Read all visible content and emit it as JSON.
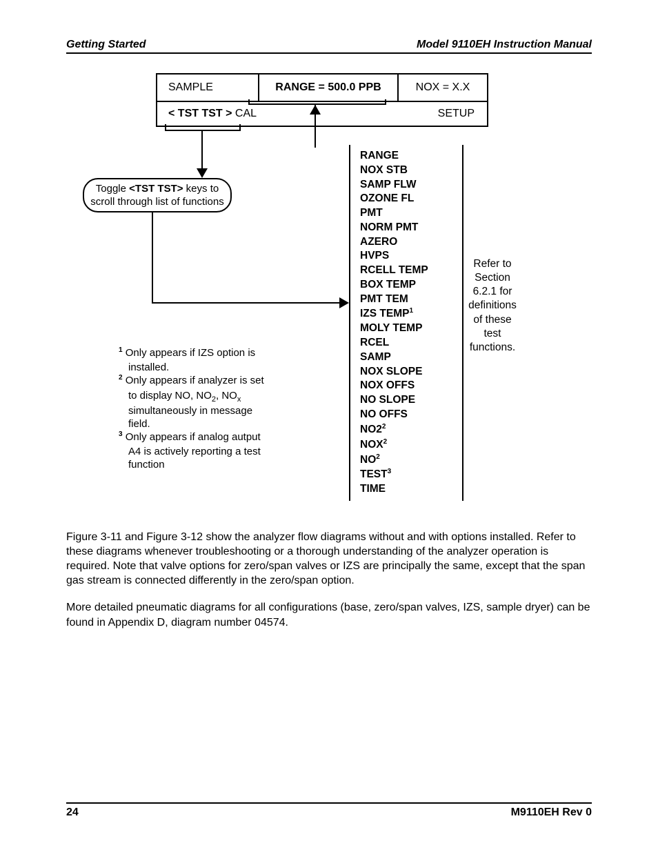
{
  "header": {
    "left": "Getting Started",
    "right": "Model 9110EH Instruction Manual"
  },
  "display": {
    "sample": "SAMPLE",
    "range": "RANGE = 500.0 PPB",
    "nox": "NOX = X.X",
    "tst_prefix": "< TST  TST >",
    "cal": " CAL",
    "setup": "SETUP"
  },
  "toggle": {
    "line1_a": "Toggle ",
    "line1_b": "<TST TST>",
    "line1_c": " keys to",
    "line2": "scroll through list of functions"
  },
  "func_list": [
    {
      "label": "RANGE",
      "sup": ""
    },
    {
      "label": "NOX STB",
      "sup": ""
    },
    {
      "label": "SAMP FLW",
      "sup": ""
    },
    {
      "label": "OZONE FL",
      "sup": ""
    },
    {
      "label": "PMT",
      "sup": ""
    },
    {
      "label": "NORM PMT",
      "sup": ""
    },
    {
      "label": "AZERO",
      "sup": ""
    },
    {
      "label": "HVPS",
      "sup": ""
    },
    {
      "label": "RCELL TEMP",
      "sup": ""
    },
    {
      "label": "BOX TEMP",
      "sup": ""
    },
    {
      "label": "PMT TEM",
      "sup": ""
    },
    {
      "label": "IZS TEMP",
      "sup": "1"
    },
    {
      "label": "MOLY TEMP",
      "sup": ""
    },
    {
      "label": "RCEL",
      "sup": ""
    },
    {
      "label": "SAMP",
      "sup": ""
    },
    {
      "label": "NOX SLOPE",
      "sup": ""
    },
    {
      "label": "NOX OFFS",
      "sup": ""
    },
    {
      "label": "NO SLOPE",
      "sup": ""
    },
    {
      "label": "NO OFFS",
      "sup": ""
    },
    {
      "label": "NO2",
      "sup": "2"
    },
    {
      "label": "NOX",
      "sup": "2"
    },
    {
      "label": "NO",
      "sup": "2"
    },
    {
      "label": "TEST",
      "sup": "3"
    },
    {
      "label": "TIME",
      "sup": ""
    }
  ],
  "refer": {
    "l1": "Refer to",
    "l2": "Section",
    "l3": "6.2.1 for",
    "l4": "definitions",
    "l5": "of these",
    "l6": "test",
    "l7": "functions."
  },
  "footnotes": {
    "f1_sup": "1",
    "f1_a": " Only appears if IZS  option is",
    "f1_b": "installed.",
    "f2_sup": "2",
    "f2_a": " Only appears if analyzer is set",
    "f2_b": "to display NO, NO",
    "f2_b2": ", NO",
    "f2_c": "simultaneously in message",
    "f2_d": "field.",
    "f3_sup": "3",
    "f3_a": " Only appears if  analog autput",
    "f3_b": "A4 is actively reporting a test",
    "f3_c": "function"
  },
  "para1": "Figure 3-11 and Figure 3-12 show the analyzer flow diagrams without and with options installed. Refer to these diagrams whenever troubleshooting or a thorough understanding of the analyzer operation is required. Note that valve options for zero/span valves or IZS are principally the same, except that the span gas stream is connected differently in the zero/span option.",
  "para2": "More detailed pneumatic diagrams for all configurations (base, zero/span valves, IZS, sample dryer) can be found in Appendix D, diagram number 04574.",
  "footer": {
    "page": "24",
    "rev": "M9110EH Rev 0"
  },
  "colors": {
    "text": "#000000",
    "bg": "#ffffff",
    "border": "#000000"
  }
}
